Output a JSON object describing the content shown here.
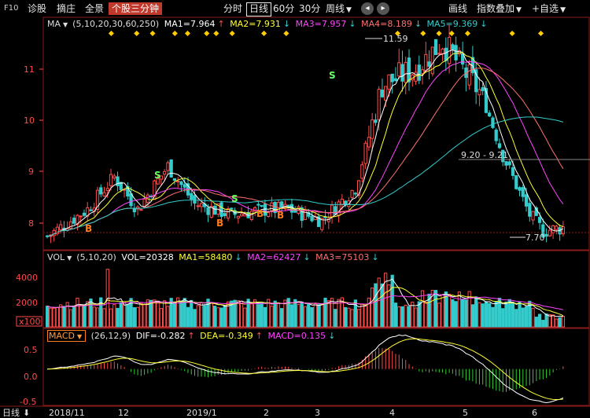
{
  "toolbar": {
    "f10": "F10",
    "stock_diagnosis": "诊股",
    "pick": "摘庄",
    "full_screen": "全景",
    "active_tab": "个股三分钟",
    "period_tabs": [
      "分时",
      "日线",
      "60分",
      "30分",
      "周线"
    ],
    "period_active_index": 1,
    "draw_lines": "画线",
    "index_overlay": "指数叠加",
    "add_watchlist": "+自选",
    "prev_symbol": "◂",
    "next_symbol": "▸"
  },
  "price_legend": {
    "name": "MA",
    "params": "(5,10,20,30,60,250)",
    "ma1": "MA1=7.964",
    "ma2": "MA2=7.931",
    "ma3": "MA3=7.957",
    "ma4": "MA4=8.189",
    "ma5": "MA5=9.369",
    "arrows": [
      "↑",
      "↓",
      "↓",
      "↓",
      "↓",
      "↓"
    ]
  },
  "vol_legend": {
    "name": "VOL",
    "params": "(5,10,20)",
    "vol": "VOL=20328",
    "ma1": "MA1=58480",
    "ma2": "MA2=62427",
    "ma3": "MA3=75103",
    "arrows": [
      "↓",
      "↓",
      "↓"
    ]
  },
  "macd_legend": {
    "name": "MACD",
    "params": "(26,12,9)",
    "dif": "DIF=-0.282",
    "dea": "DEA=-0.349",
    "macd": "MACD=0.135",
    "arrows": [
      "↑",
      "↑",
      "↓"
    ]
  },
  "annotations": {
    "high": "11.59",
    "low": "7.70",
    "range": "9.20 - 9.21",
    "b_marks": [
      "B",
      "B",
      "B",
      "B"
    ],
    "s_marks": [
      "S",
      "S",
      "S"
    ]
  },
  "bottom": {
    "mode": "日线",
    "mode_arrow": "⬇"
  },
  "colors": {
    "up": "#ff4c4c",
    "down": "#33cccc",
    "ma1": "#ffffff",
    "ma2": "#ffff33",
    "ma3": "#ff44ff",
    "ma4": "#ff7070",
    "ma5": "#33cccc",
    "dif": "#ffffff",
    "dea": "#ffff33",
    "signal_diamond": "#ffcc00",
    "active_tab": "#c0392b"
  },
  "chart_data": [
    {
      "type": "candlestick",
      "title": "",
      "y_ticks": [
        "8",
        "9",
        "10",
        "11"
      ],
      "ylim": [
        7.55,
        11.85
      ],
      "x_ticks": [
        "2018/11",
        "12",
        "2019/1",
        "2",
        "3",
        "4",
        "5",
        "6"
      ],
      "series_names": [
        "MA1",
        "MA2",
        "MA3",
        "MA4",
        "MA5"
      ],
      "approx_close_path": [
        {
          "date": "2018/11 start",
          "close": 7.8
        },
        {
          "date": "2018/11 mid",
          "close": 8.3
        },
        {
          "date": "2018/11 late",
          "close": 8.9
        },
        {
          "date": "2018/12 start",
          "close": 8.3
        },
        {
          "date": "2018/12 mid",
          "close": 9.1
        },
        {
          "date": "2018/12 late",
          "close": 8.4
        },
        {
          "date": "2019/1",
          "close": 8.2
        },
        {
          "date": "2019/1 late",
          "close": 8.3
        },
        {
          "date": "2019/2",
          "close": 8.1
        },
        {
          "date": "2019/2 late",
          "close": 8.7
        },
        {
          "date": "2019/3",
          "close": 10.6
        },
        {
          "date": "2019/3 late",
          "close": 10.9
        },
        {
          "date": "2019/4",
          "close": 11.4
        },
        {
          "date": "2019/4 late",
          "close": 10.7
        },
        {
          "date": "2019/5",
          "close": 9.3
        },
        {
          "date": "2019/5 late",
          "close": 8.2
        },
        {
          "date": "2019/6",
          "close": 7.9
        },
        {
          "date": "2019/6 late",
          "close": 7.96
        }
      ],
      "annotations": {
        "high": 11.59,
        "low": 7.7,
        "hline": "9.20 - 9.21"
      }
    },
    {
      "type": "bar",
      "title": "VOL",
      "y_ticks": [
        "2000",
        "4000"
      ],
      "unit_box": "x100",
      "ylim": [
        0,
        5000
      ],
      "series_names": [
        "VOL",
        "MA1",
        "MA2",
        "MA3"
      ],
      "values_last": {
        "VOL": 20328,
        "MA1": 58480,
        "MA2": 62427,
        "MA3": 75103
      }
    },
    {
      "type": "bar",
      "title": "MACD",
      "y_ticks": [
        "0.5",
        "0.0",
        "-0.5"
      ],
      "ylim": [
        -0.7,
        0.75
      ],
      "series_names": [
        "DIF",
        "DEA",
        "MACD"
      ],
      "values_last": {
        "DIF": -0.282,
        "DEA": -0.349,
        "MACD": 0.135
      }
    }
  ]
}
